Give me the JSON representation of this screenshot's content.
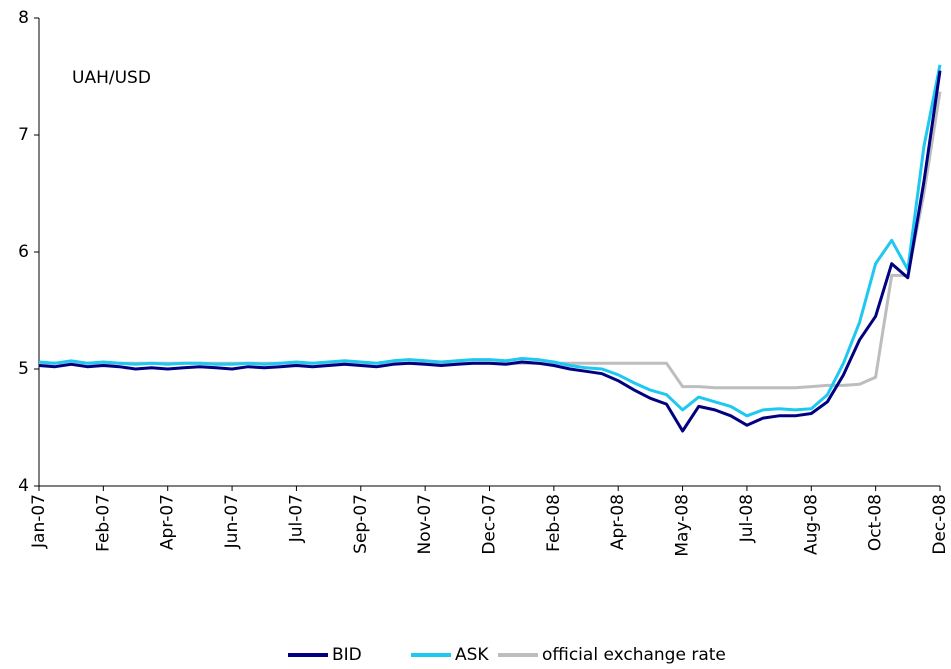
{
  "chart_data": {
    "type": "line",
    "annotation": "UAH/USD",
    "categories": [
      "Jan-07",
      null,
      null,
      null,
      "Feb-07",
      null,
      null,
      null,
      "Apr-07",
      null,
      null,
      null,
      "Jun-07",
      null,
      null,
      null,
      "Jul-07",
      null,
      null,
      null,
      "Sep-07",
      null,
      null,
      null,
      "Nov-07",
      null,
      null,
      null,
      "Dec-07",
      null,
      null,
      null,
      "Feb-08",
      null,
      null,
      null,
      "Apr-08",
      null,
      null,
      null,
      "May-08",
      null,
      null,
      null,
      "Jul-08",
      null,
      null,
      null,
      "Aug-08",
      null,
      null,
      null,
      "Oct-08",
      null,
      null,
      null,
      "Dec-08"
    ],
    "series": [
      {
        "name": "BID",
        "color": "#000080",
        "values": [
          5.03,
          5.02,
          5.04,
          5.02,
          5.03,
          5.02,
          5.0,
          5.01,
          5.0,
          5.01,
          5.02,
          5.01,
          5.0,
          5.02,
          5.01,
          5.02,
          5.03,
          5.02,
          5.03,
          5.04,
          5.03,
          5.02,
          5.04,
          5.05,
          5.04,
          5.03,
          5.04,
          5.05,
          5.05,
          5.04,
          5.06,
          5.05,
          5.03,
          5.0,
          4.98,
          4.96,
          4.9,
          4.82,
          4.75,
          4.7,
          4.47,
          4.68,
          4.65,
          4.6,
          4.52,
          4.58,
          4.6,
          4.6,
          4.62,
          4.72,
          4.95,
          5.25,
          5.45,
          5.9,
          5.78,
          6.6,
          7.55
        ]
      },
      {
        "name": "ASK",
        "color": "#1ec8f0",
        "values": [
          5.06,
          5.05,
          5.07,
          5.05,
          5.06,
          5.05,
          5.04,
          5.05,
          5.04,
          5.05,
          5.05,
          5.04,
          5.04,
          5.05,
          5.04,
          5.05,
          5.06,
          5.05,
          5.06,
          5.07,
          5.06,
          5.05,
          5.07,
          5.08,
          5.07,
          5.06,
          5.07,
          5.08,
          5.08,
          5.07,
          5.09,
          5.08,
          5.06,
          5.03,
          5.01,
          5.0,
          4.95,
          4.88,
          4.82,
          4.78,
          4.65,
          4.76,
          4.72,
          4.68,
          4.6,
          4.65,
          4.66,
          4.65,
          4.66,
          4.78,
          5.05,
          5.4,
          5.9,
          6.1,
          5.85,
          6.9,
          7.6
        ]
      },
      {
        "name": "official exchange rate",
        "color": "#bdbdbd",
        "values": [
          5.05,
          5.05,
          5.05,
          5.05,
          5.05,
          5.05,
          5.05,
          5.05,
          5.05,
          5.05,
          5.05,
          5.05,
          5.05,
          5.05,
          5.05,
          5.05,
          5.05,
          5.05,
          5.05,
          5.05,
          5.05,
          5.05,
          5.05,
          5.05,
          5.05,
          5.05,
          5.05,
          5.05,
          5.05,
          5.05,
          5.05,
          5.05,
          5.05,
          5.05,
          5.05,
          5.05,
          5.05,
          5.05,
          5.05,
          5.05,
          4.85,
          4.85,
          4.84,
          4.84,
          4.84,
          4.84,
          4.84,
          4.84,
          4.85,
          4.86,
          4.86,
          4.87,
          4.93,
          5.8,
          5.8,
          6.5,
          7.37
        ]
      }
    ],
    "ylim": [
      4,
      8
    ],
    "yticks": [
      4,
      5,
      6,
      7,
      8
    ],
    "grid": false,
    "legend": "bottom"
  }
}
